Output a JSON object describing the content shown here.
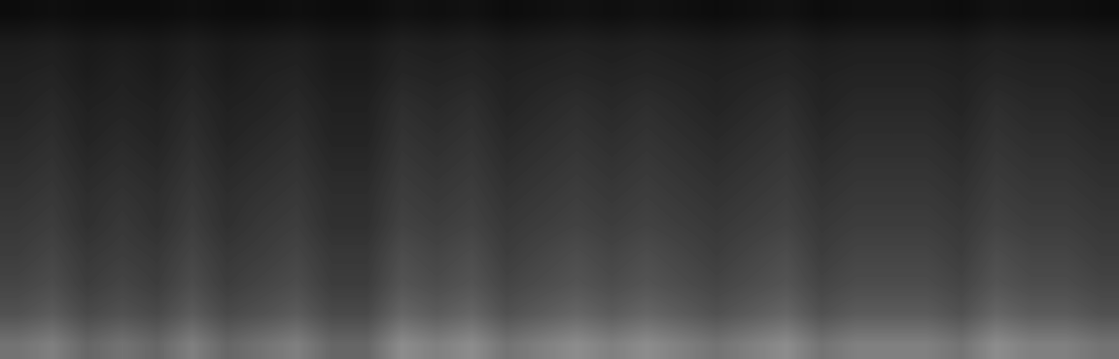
{
  "chart_data": {
    "type": "heatmap",
    "color": "gray",
    "tick_labels": false,
    "color_range": [
      0,
      1
    ],
    "cells": [
      [
        0.05,
        0.06,
        0.05,
        0.05,
        0.05,
        0.06,
        0.05,
        0.05,
        0.06,
        0.05,
        0.05,
        0.07,
        0.06,
        0.07,
        0.05,
        0.06,
        0.07,
        0.06,
        0.07,
        0.06,
        0.05,
        0.06,
        0.07,
        0.05,
        0.06,
        0.06,
        0.06,
        0.05,
        0.07,
        0.06,
        0.06,
        0.05
      ],
      [
        0.11,
        0.12,
        0.1,
        0.11,
        0.1,
        0.12,
        0.1,
        0.11,
        0.12,
        0.1,
        0.1,
        0.13,
        0.12,
        0.13,
        0.11,
        0.12,
        0.13,
        0.12,
        0.13,
        0.12,
        0.11,
        0.12,
        0.13,
        0.11,
        0.12,
        0.12,
        0.12,
        0.11,
        0.13,
        0.12,
        0.12,
        0.11
      ],
      [
        0.13,
        0.14,
        0.11,
        0.13,
        0.11,
        0.14,
        0.11,
        0.13,
        0.14,
        0.11,
        0.11,
        0.15,
        0.14,
        0.15,
        0.13,
        0.14,
        0.15,
        0.14,
        0.15,
        0.14,
        0.13,
        0.14,
        0.15,
        0.13,
        0.14,
        0.14,
        0.14,
        0.13,
        0.15,
        0.14,
        0.14,
        0.13
      ],
      [
        0.14,
        0.16,
        0.13,
        0.14,
        0.13,
        0.16,
        0.13,
        0.14,
        0.16,
        0.13,
        0.13,
        0.18,
        0.16,
        0.18,
        0.14,
        0.16,
        0.18,
        0.16,
        0.18,
        0.16,
        0.14,
        0.16,
        0.18,
        0.14,
        0.16,
        0.16,
        0.16,
        0.14,
        0.18,
        0.16,
        0.16,
        0.14
      ],
      [
        0.16,
        0.18,
        0.14,
        0.16,
        0.14,
        0.18,
        0.14,
        0.16,
        0.18,
        0.14,
        0.14,
        0.2,
        0.18,
        0.2,
        0.16,
        0.18,
        0.2,
        0.18,
        0.2,
        0.18,
        0.16,
        0.18,
        0.2,
        0.16,
        0.18,
        0.18,
        0.18,
        0.16,
        0.2,
        0.18,
        0.18,
        0.16
      ],
      [
        0.18,
        0.2,
        0.16,
        0.18,
        0.16,
        0.2,
        0.16,
        0.18,
        0.2,
        0.16,
        0.16,
        0.22,
        0.2,
        0.22,
        0.18,
        0.2,
        0.22,
        0.2,
        0.22,
        0.2,
        0.18,
        0.2,
        0.22,
        0.18,
        0.2,
        0.2,
        0.2,
        0.18,
        0.22,
        0.2,
        0.2,
        0.18
      ],
      [
        0.2,
        0.22,
        0.18,
        0.2,
        0.18,
        0.22,
        0.18,
        0.2,
        0.22,
        0.18,
        0.18,
        0.24,
        0.22,
        0.24,
        0.2,
        0.22,
        0.24,
        0.22,
        0.24,
        0.22,
        0.2,
        0.22,
        0.24,
        0.2,
        0.22,
        0.22,
        0.22,
        0.2,
        0.24,
        0.22,
        0.22,
        0.2
      ],
      [
        0.22,
        0.24,
        0.19,
        0.22,
        0.19,
        0.24,
        0.19,
        0.22,
        0.24,
        0.19,
        0.19,
        0.26,
        0.24,
        0.26,
        0.22,
        0.24,
        0.26,
        0.24,
        0.26,
        0.24,
        0.22,
        0.24,
        0.26,
        0.22,
        0.24,
        0.24,
        0.24,
        0.22,
        0.26,
        0.24,
        0.24,
        0.22
      ],
      [
        0.24,
        0.27,
        0.22,
        0.24,
        0.22,
        0.27,
        0.22,
        0.24,
        0.27,
        0.22,
        0.22,
        0.3,
        0.27,
        0.3,
        0.24,
        0.27,
        0.3,
        0.27,
        0.3,
        0.27,
        0.24,
        0.27,
        0.3,
        0.24,
        0.27,
        0.27,
        0.27,
        0.24,
        0.3,
        0.27,
        0.27,
        0.24
      ],
      [
        0.27,
        0.3,
        0.24,
        0.27,
        0.24,
        0.3,
        0.24,
        0.27,
        0.3,
        0.24,
        0.24,
        0.33,
        0.3,
        0.33,
        0.27,
        0.3,
        0.33,
        0.3,
        0.33,
        0.3,
        0.27,
        0.3,
        0.33,
        0.27,
        0.3,
        0.3,
        0.3,
        0.27,
        0.33,
        0.3,
        0.3,
        0.27
      ],
      [
        0.32,
        0.36,
        0.29,
        0.32,
        0.29,
        0.36,
        0.29,
        0.32,
        0.36,
        0.29,
        0.29,
        0.4,
        0.36,
        0.4,
        0.32,
        0.36,
        0.4,
        0.36,
        0.4,
        0.36,
        0.32,
        0.36,
        0.4,
        0.32,
        0.36,
        0.36,
        0.36,
        0.32,
        0.4,
        0.36,
        0.36,
        0.32
      ],
      [
        0.45,
        0.5,
        0.4,
        0.45,
        0.4,
        0.5,
        0.4,
        0.45,
        0.5,
        0.4,
        0.4,
        0.55,
        0.5,
        0.55,
        0.45,
        0.5,
        0.55,
        0.5,
        0.55,
        0.5,
        0.45,
        0.5,
        0.55,
        0.45,
        0.5,
        0.5,
        0.5,
        0.45,
        0.55,
        0.5,
        0.5,
        0.45
      ]
    ]
  }
}
